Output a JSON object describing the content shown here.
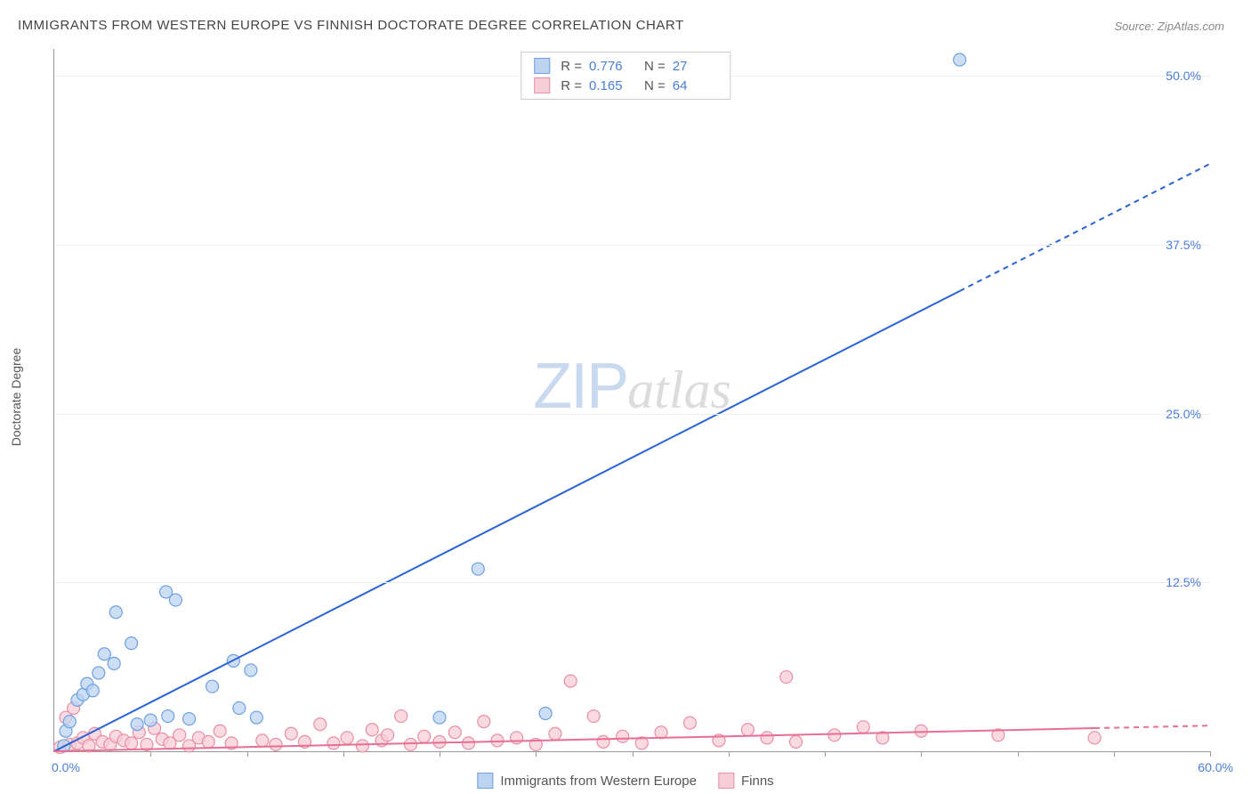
{
  "title": "IMMIGRANTS FROM WESTERN EUROPE VS FINNISH DOCTORATE DEGREE CORRELATION CHART",
  "source": "Source: ZipAtlas.com",
  "yaxis_title": "Doctorate Degree",
  "watermark_a": "ZIP",
  "watermark_b": "atlas",
  "chart": {
    "type": "scatter-with-regression",
    "xlim": [
      0,
      60
    ],
    "ylim": [
      0,
      52
    ],
    "ytick_values": [
      12.5,
      25.0,
      37.5,
      50.0
    ],
    "ytick_labels": [
      "12.5%",
      "25.0%",
      "37.5%",
      "50.0%"
    ],
    "xtick_values": [
      5,
      10,
      15,
      20,
      25,
      30,
      35,
      40,
      45,
      50,
      55,
      60
    ],
    "x_origin_label": "0.0%",
    "x_max_label": "60.0%",
    "grid_color": "#eeeeee",
    "axis_color": "#999999",
    "background_color": "#ffffff",
    "marker_radius": 7,
    "marker_stroke_width": 1.2,
    "line_width": 2,
    "series": [
      {
        "id": "immigrants",
        "label": "Immigrants from Western Europe",
        "R": "0.776",
        "N": "27",
        "fill_color": "#bcd4f0",
        "stroke_color": "#6fa0e0",
        "line_color": "#2a63d6",
        "line_solid_end_x": 47,
        "line_end": {
          "x": 60,
          "y": 43.5
        },
        "points": [
          {
            "x": 0.5,
            "y": 0.4
          },
          {
            "x": 0.6,
            "y": 1.5
          },
          {
            "x": 0.8,
            "y": 2.2
          },
          {
            "x": 1.2,
            "y": 3.8
          },
          {
            "x": 1.5,
            "y": 4.2
          },
          {
            "x": 1.7,
            "y": 5.0
          },
          {
            "x": 2.0,
            "y": 4.5
          },
          {
            "x": 2.3,
            "y": 5.8
          },
          {
            "x": 2.6,
            "y": 7.2
          },
          {
            "x": 3.2,
            "y": 10.3
          },
          {
            "x": 3.1,
            "y": 6.5
          },
          {
            "x": 4.0,
            "y": 8.0
          },
          {
            "x": 4.3,
            "y": 2.0
          },
          {
            "x": 5.0,
            "y": 2.3
          },
          {
            "x": 5.8,
            "y": 11.8
          },
          {
            "x": 5.9,
            "y": 2.6
          },
          {
            "x": 6.3,
            "y": 11.2
          },
          {
            "x": 7.0,
            "y": 2.4
          },
          {
            "x": 8.2,
            "y": 4.8
          },
          {
            "x": 9.3,
            "y": 6.7
          },
          {
            "x": 9.6,
            "y": 3.2
          },
          {
            "x": 10.2,
            "y": 6.0
          },
          {
            "x": 10.5,
            "y": 2.5
          },
          {
            "x": 20.0,
            "y": 2.5
          },
          {
            "x": 22.0,
            "y": 13.5
          },
          {
            "x": 25.5,
            "y": 2.8
          },
          {
            "x": 47.0,
            "y": 51.2
          }
        ]
      },
      {
        "id": "finns",
        "label": "Finns",
        "R": "0.165",
        "N": "64",
        "fill_color": "#f7cdd7",
        "stroke_color": "#e890a8",
        "line_color": "#e86f94",
        "line_solid_end_x": 54,
        "line_end": {
          "x": 60,
          "y": 1.9
        },
        "points": [
          {
            "x": 0.3,
            "y": 0.3
          },
          {
            "x": 0.6,
            "y": 2.5
          },
          {
            "x": 0.8,
            "y": 0.5
          },
          {
            "x": 1.0,
            "y": 3.2
          },
          {
            "x": 1.2,
            "y": 0.6
          },
          {
            "x": 1.5,
            "y": 1.0
          },
          {
            "x": 1.8,
            "y": 0.4
          },
          {
            "x": 2.1,
            "y": 1.3
          },
          {
            "x": 2.5,
            "y": 0.7
          },
          {
            "x": 2.9,
            "y": 0.5
          },
          {
            "x": 3.2,
            "y": 1.1
          },
          {
            "x": 3.6,
            "y": 0.8
          },
          {
            "x": 4.0,
            "y": 0.6
          },
          {
            "x": 4.4,
            "y": 1.4
          },
          {
            "x": 4.8,
            "y": 0.5
          },
          {
            "x": 5.2,
            "y": 1.7
          },
          {
            "x": 5.6,
            "y": 0.9
          },
          {
            "x": 6.0,
            "y": 0.6
          },
          {
            "x": 6.5,
            "y": 1.2
          },
          {
            "x": 7.0,
            "y": 0.4
          },
          {
            "x": 7.5,
            "y": 1.0
          },
          {
            "x": 8.0,
            "y": 0.7
          },
          {
            "x": 8.6,
            "y": 1.5
          },
          {
            "x": 9.2,
            "y": 0.6
          },
          {
            "x": 10.8,
            "y": 0.8
          },
          {
            "x": 11.5,
            "y": 0.5
          },
          {
            "x": 12.3,
            "y": 1.3
          },
          {
            "x": 13.0,
            "y": 0.7
          },
          {
            "x": 13.8,
            "y": 2.0
          },
          {
            "x": 14.5,
            "y": 0.6
          },
          {
            "x": 15.2,
            "y": 1.0
          },
          {
            "x": 16.0,
            "y": 0.4
          },
          {
            "x": 16.5,
            "y": 1.6
          },
          {
            "x": 17.0,
            "y": 0.8
          },
          {
            "x": 17.3,
            "y": 1.2
          },
          {
            "x": 18.0,
            "y": 2.6
          },
          {
            "x": 18.5,
            "y": 0.5
          },
          {
            "x": 19.2,
            "y": 1.1
          },
          {
            "x": 20.0,
            "y": 0.7
          },
          {
            "x": 20.8,
            "y": 1.4
          },
          {
            "x": 21.5,
            "y": 0.6
          },
          {
            "x": 22.3,
            "y": 2.2
          },
          {
            "x": 23.0,
            "y": 0.8
          },
          {
            "x": 24.0,
            "y": 1.0
          },
          {
            "x": 25.0,
            "y": 0.5
          },
          {
            "x": 26.0,
            "y": 1.3
          },
          {
            "x": 26.8,
            "y": 5.2
          },
          {
            "x": 28.0,
            "y": 2.6
          },
          {
            "x": 28.5,
            "y": 0.7
          },
          {
            "x": 29.5,
            "y": 1.1
          },
          {
            "x": 30.5,
            "y": 0.6
          },
          {
            "x": 31.5,
            "y": 1.4
          },
          {
            "x": 33.0,
            "y": 2.1
          },
          {
            "x": 34.5,
            "y": 0.8
          },
          {
            "x": 36.0,
            "y": 1.6
          },
          {
            "x": 37.0,
            "y": 1.0
          },
          {
            "x": 38.0,
            "y": 5.5
          },
          {
            "x": 38.5,
            "y": 0.7
          },
          {
            "x": 40.5,
            "y": 1.2
          },
          {
            "x": 42.0,
            "y": 1.8
          },
          {
            "x": 43.0,
            "y": 1.0
          },
          {
            "x": 45.0,
            "y": 1.5
          },
          {
            "x": 49.0,
            "y": 1.2
          },
          {
            "x": 54.0,
            "y": 1.0
          }
        ]
      }
    ]
  }
}
